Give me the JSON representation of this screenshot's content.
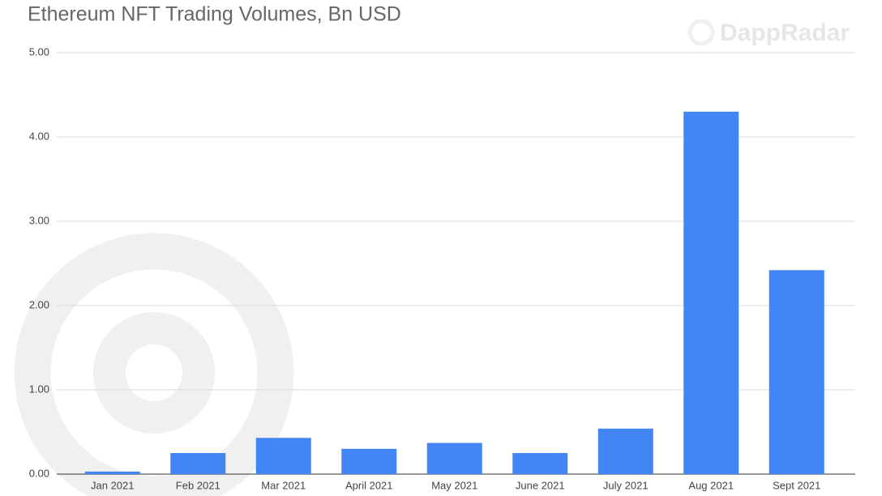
{
  "chart_data": {
    "type": "bar",
    "title": "Ethereum NFT Trading Volumes, Bn USD",
    "watermark": "DappRadar",
    "categories": [
      "Jan 2021",
      "Feb 2021",
      "Mar 2021",
      "April 2021",
      "May 2021",
      "June 2021",
      "July 2021",
      "Aug 2021",
      "Sept 2021"
    ],
    "values": [
      0.03,
      0.25,
      0.43,
      0.3,
      0.37,
      0.25,
      0.54,
      4.3,
      2.42
    ],
    "color": "#4285f4",
    "ylim": [
      0,
      5
    ],
    "yticks": [
      {
        "value": 0,
        "label": "0.00"
      },
      {
        "value": 1,
        "label": "1.00"
      },
      {
        "value": 2,
        "label": "2.00"
      },
      {
        "value": 3,
        "label": "3.00"
      },
      {
        "value": 4,
        "label": "4.00"
      },
      {
        "value": 5,
        "label": "5.00"
      }
    ],
    "grid": true
  }
}
